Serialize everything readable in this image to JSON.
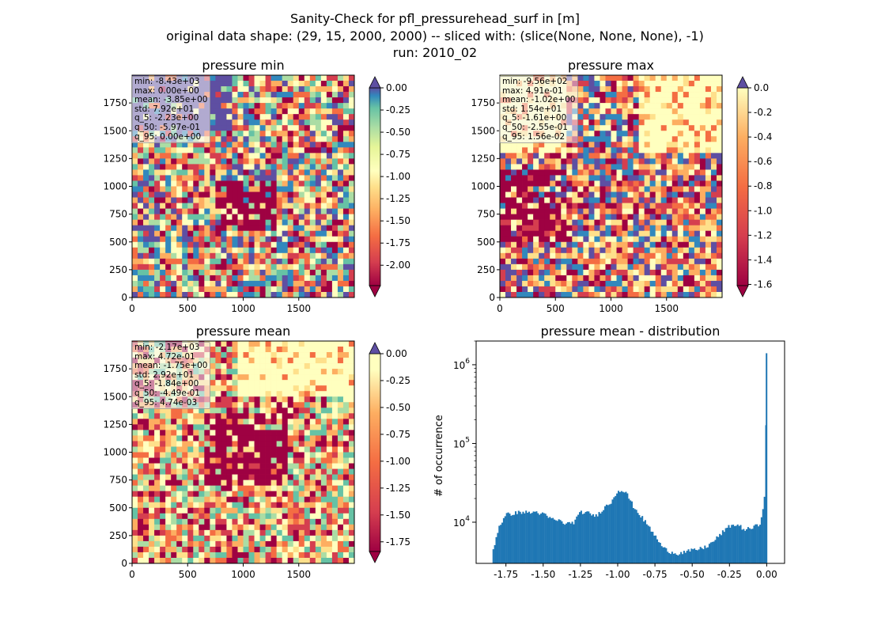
{
  "figure": {
    "title_line1": "Sanity-Check for pfl_pressurehead_surf in [m]",
    "title_line2": "original data shape: (29, 15, 2000, 2000) -- sliced with: (slice(None, None, None), -1)",
    "title_line3": "run: 2010_02"
  },
  "panels": [
    {
      "title": "pressure min",
      "stats": [
        "min: -8.43e+03",
        "max: 0.00e+00",
        "mean: -3.85e+00",
        "std: 7.92e+01",
        "q_5: -2.23e+00",
        "q_50: -5.97e-01",
        "q_95: 0.00e+00"
      ],
      "colorbar_ticks": [
        "0.00",
        "-0.25",
        "-0.50",
        "-0.75",
        "-1.00",
        "-1.25",
        "-1.50",
        "-1.75",
        "-2.00"
      ],
      "x_ticks": [
        "0",
        "500",
        "1000",
        "1500"
      ],
      "y_ticks": [
        "0",
        "250",
        "500",
        "750",
        "1000",
        "1250",
        "1500",
        "1750"
      ]
    },
    {
      "title": "pressure max",
      "stats": [
        "min: -9.56e+02",
        "max: 4.91e-01",
        "mean: -1.02e+00",
        "std: 1.54e+01",
        "q_5: -1.61e+00",
        "q_50: -2.55e-01",
        "q_95: 1.56e-02"
      ],
      "colorbar_ticks": [
        "0.0",
        "-0.2",
        "-0.4",
        "-0.6",
        "-0.8",
        "-1.0",
        "-1.2",
        "-1.4",
        "-1.6"
      ],
      "x_ticks": [
        "0",
        "500",
        "1000",
        "1500"
      ],
      "y_ticks": [
        "0",
        "250",
        "500",
        "750",
        "1000",
        "1250",
        "1500",
        "1750"
      ]
    },
    {
      "title": "pressure mean",
      "stats": [
        "min: -2.17e+03",
        "max: 4.72e-01",
        "mean: -1.75e+00",
        "std: 2.92e+01",
        "q_5: -1.84e+00",
        "q_50: -4.49e-01",
        "q_95: 4.74e-03"
      ],
      "colorbar_ticks": [
        "0.00",
        "-0.25",
        "-0.50",
        "-0.75",
        "-1.00",
        "-1.25",
        "-1.50",
        "-1.75"
      ],
      "x_ticks": [
        "0",
        "500",
        "1000",
        "1500"
      ],
      "y_ticks": [
        "0",
        "250",
        "500",
        "750",
        "1000",
        "1250",
        "1500",
        "1750"
      ]
    }
  ],
  "colors": {
    "histogram_bar": "#1f77b4",
    "cmap_low": "#9e0142",
    "cmap_mid": "#ffffbf",
    "cmap_high": "#5e4fa2"
  },
  "chart_data": {
    "type": "bar",
    "title": "pressure mean - distribution",
    "xlabel": "",
    "ylabel": "# of occurrence",
    "yscale": "log",
    "ylim": [
      3000,
      2000000
    ],
    "xlim": [
      -1.95,
      0.12
    ],
    "x_ticks": [
      "-1.75",
      "-1.50",
      "-1.25",
      "-1.00",
      "-0.75",
      "-0.50",
      "-0.25",
      "0.00"
    ],
    "y_ticks": [
      "10^4",
      "10^5",
      "10^6"
    ],
    "x": [
      -1.84,
      -1.8,
      -1.75,
      -1.7,
      -1.65,
      -1.6,
      -1.55,
      -1.5,
      -1.45,
      -1.4,
      -1.35,
      -1.3,
      -1.25,
      -1.2,
      -1.15,
      -1.1,
      -1.05,
      -1.0,
      -0.95,
      -0.9,
      -0.85,
      -0.8,
      -0.75,
      -0.7,
      -0.65,
      -0.6,
      -0.55,
      -0.5,
      -0.45,
      -0.4,
      -0.35,
      -0.3,
      -0.25,
      -0.2,
      -0.15,
      -0.1,
      -0.05,
      -0.02,
      0.0
    ],
    "values": [
      4500,
      9000,
      12500,
      13000,
      13500,
      13200,
      13500,
      12500,
      11000,
      10500,
      9500,
      10000,
      13500,
      13000,
      12000,
      15000,
      18000,
      26000,
      24000,
      16000,
      12000,
      9000,
      6500,
      4700,
      4200,
      4000,
      4200,
      4400,
      4600,
      5000,
      6000,
      7500,
      9000,
      9300,
      8000,
      8500,
      9500,
      20000,
      1400000
    ]
  }
}
